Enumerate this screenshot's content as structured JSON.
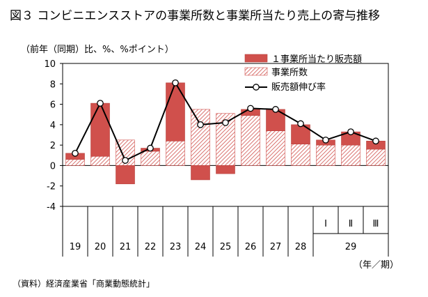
{
  "title": "図３ コンビニエンスストアの事業所数と事業所当たり売上の寄与推移",
  "unit_label": "（前年（同期）比、%、%ポイント）",
  "source": "（資料）経済産業省「商業動態統計」",
  "chart_data": {
    "type": "bar",
    "stacked": true,
    "categories": [
      "19",
      "20",
      "21",
      "22",
      "23",
      "24",
      "25",
      "26",
      "27",
      "28",
      "29 I",
      "29 II",
      "29 III"
    ],
    "x_tick_labels": [
      "19",
      "20",
      "21",
      "22",
      "23",
      "24",
      "25",
      "26",
      "27",
      "28",
      "29"
    ],
    "sub_tick_labels": [
      "Ⅰ",
      "Ⅱ",
      "Ⅲ"
    ],
    "x_unit_label": "（年／期）",
    "ylim": [
      -4,
      10
    ],
    "yticks": [
      10,
      8,
      6,
      4,
      2,
      0,
      -2,
      -4
    ],
    "grid": false,
    "legend_position": "top-right",
    "series": [
      {
        "name": "１事業所当たり販売額",
        "kind": "bar",
        "color": "#d0504c",
        "values": [
          0.6,
          5.2,
          -1.8,
          0.3,
          5.7,
          -1.4,
          -0.8,
          0.6,
          2.1,
          1.9,
          0.5,
          1.3,
          0.8
        ]
      },
      {
        "name": "事業所数",
        "kind": "bar-hatched",
        "color": "#d0504c",
        "values": [
          0.6,
          0.9,
          2.5,
          1.4,
          2.4,
          5.5,
          5.1,
          4.9,
          3.4,
          2.1,
          2.0,
          2.0,
          1.6
        ]
      },
      {
        "name": "販売額伸び率",
        "kind": "line",
        "values": [
          1.2,
          6.1,
          0.5,
          1.7,
          8.1,
          4.0,
          4.2,
          5.6,
          5.5,
          4.1,
          2.5,
          3.3,
          2.4
        ]
      }
    ]
  }
}
